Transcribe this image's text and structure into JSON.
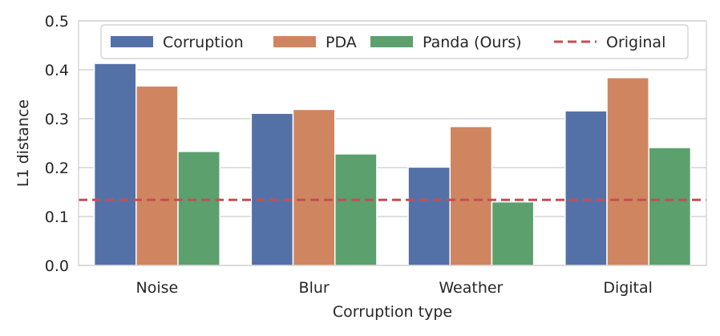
{
  "chart_data": {
    "type": "bar",
    "xlabel": "Corruption type",
    "ylabel": "L1 distance",
    "categories": [
      "Noise",
      "Blur",
      "Weather",
      "Digital"
    ],
    "series": [
      {
        "name": "Corruption",
        "color": "#5471a7",
        "values": [
          0.413,
          0.311,
          0.201,
          0.316
        ]
      },
      {
        "name": "PDA",
        "color": "#cf8660",
        "values": [
          0.367,
          0.319,
          0.284,
          0.384
        ]
      },
      {
        "name": "Panda (Ours)",
        "color": "#5ca06e",
        "values": [
          0.233,
          0.228,
          0.13,
          0.241
        ]
      }
    ],
    "reference_line": {
      "name": "Original",
      "value": 0.134,
      "color": "#c44e52",
      "style": "dashed"
    },
    "ylim": [
      0,
      0.5
    ],
    "yticks": [
      "0.0",
      "0.1",
      "0.2",
      "0.3",
      "0.4",
      "0.5"
    ],
    "grid": "horizontal",
    "legend_position": "top"
  }
}
